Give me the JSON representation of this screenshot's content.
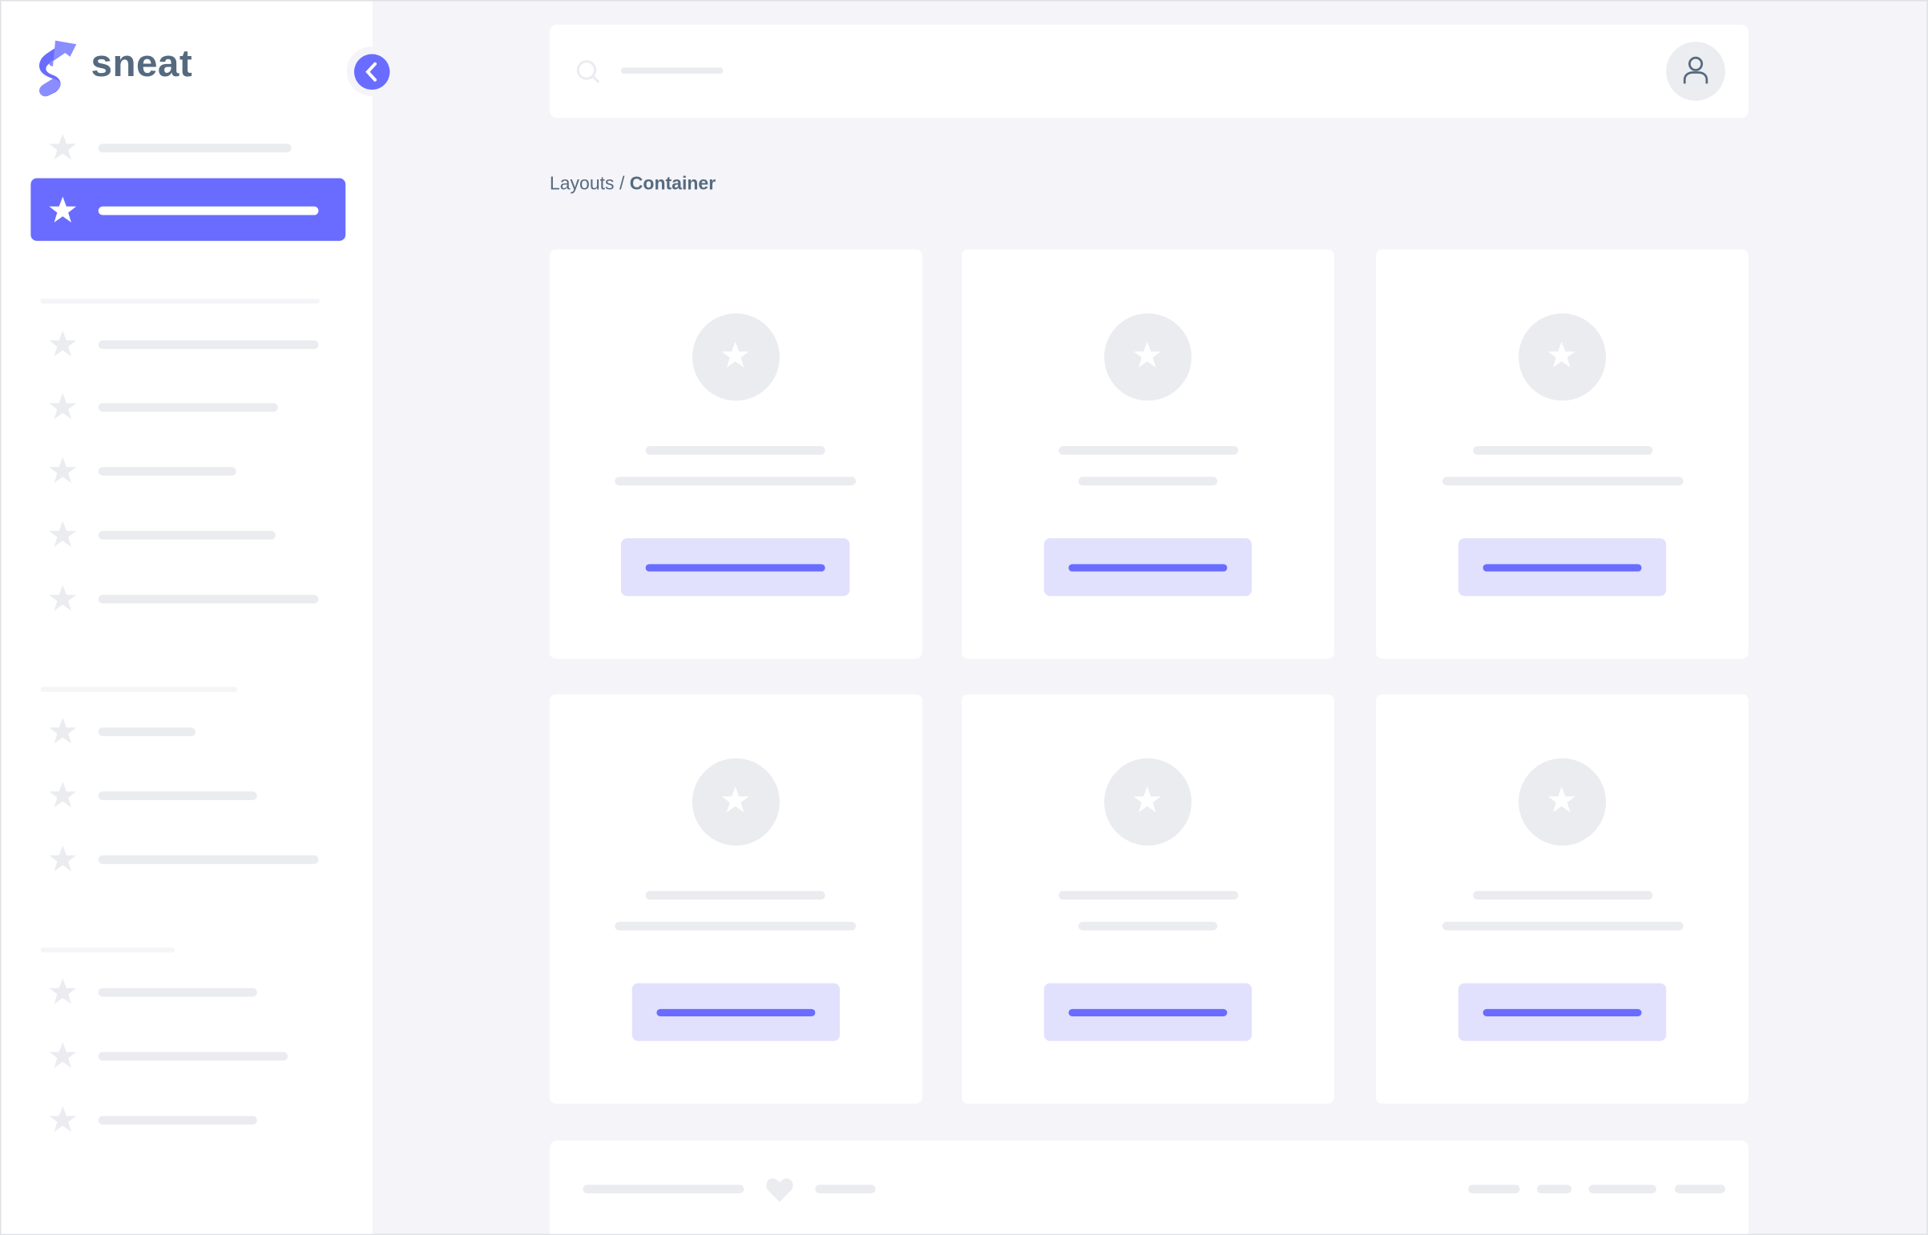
{
  "brand": {
    "name": "sneat"
  },
  "breadcrumb": {
    "parent": "Layouts",
    "separator": " / ",
    "current": "Container"
  },
  "colors": {
    "primary": "#696cff",
    "primary_light": "#e1e1fe",
    "skeleton": "#ebecf0",
    "background": "#f4f4f9",
    "text": "#566a7f"
  },
  "icons": {
    "logo": "sneat-logo",
    "collapse": "chevron-left-icon",
    "menu": "star-icon",
    "search": "search-icon",
    "user": "user-icon",
    "heart": "heart-icon"
  },
  "sidebar": {
    "active_index": 1
  }
}
